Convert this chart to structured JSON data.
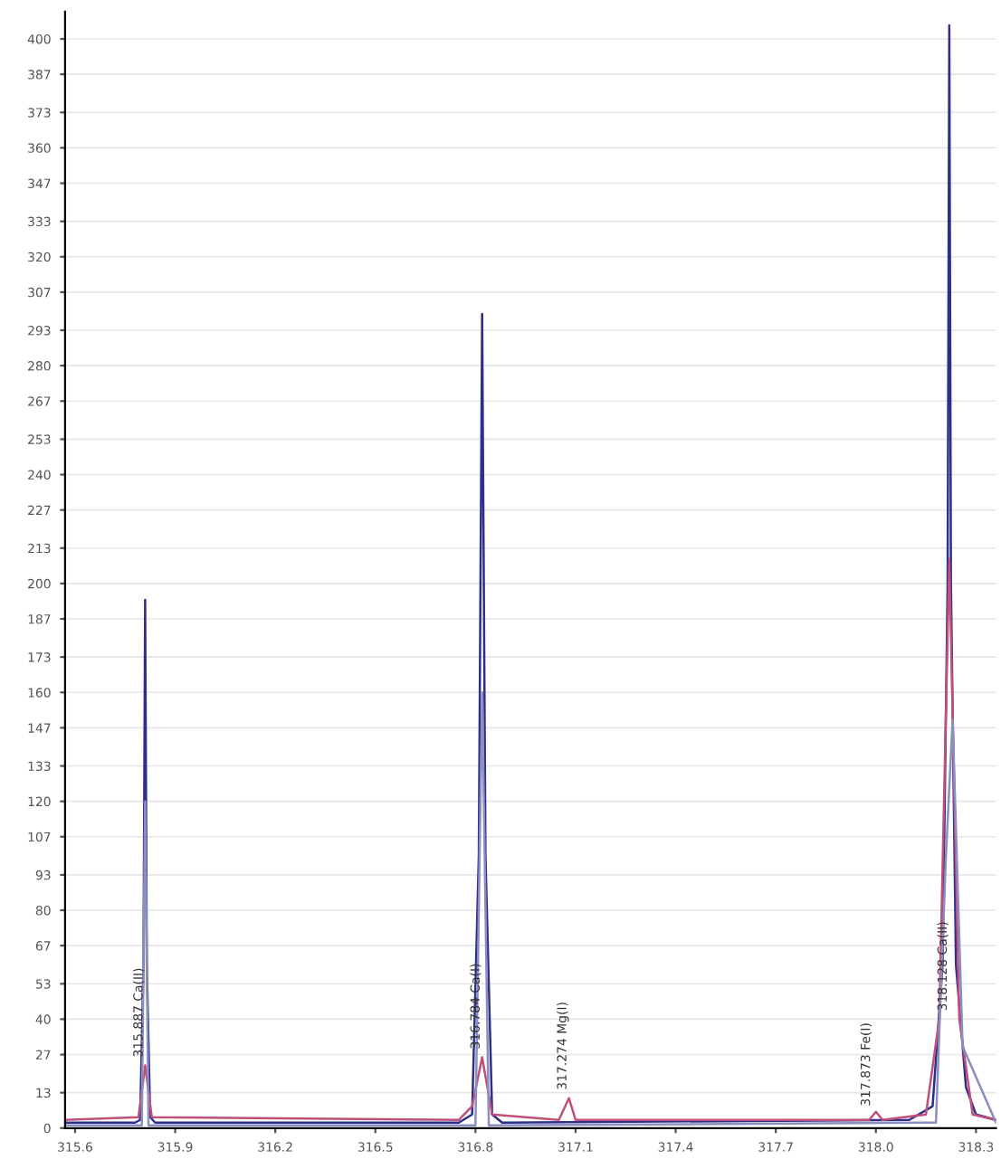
{
  "chart_data": {
    "type": "line",
    "xlim": [
      315.57,
      318.36
    ],
    "ylim": [
      0,
      410
    ],
    "xticks": [
      {
        "value": 315.6,
        "label": "315.6"
      },
      {
        "value": 315.9,
        "label": "315.9"
      },
      {
        "value": 316.2,
        "label": "316.2"
      },
      {
        "value": 316.5,
        "label": "316.5"
      },
      {
        "value": 316.8,
        "label": "316.8"
      },
      {
        "value": 317.1,
        "label": "317.1"
      },
      {
        "value": 317.4,
        "label": "317.4"
      },
      {
        "value": 317.7,
        "label": "317.7"
      },
      {
        "value": 318.0,
        "label": "318.0"
      },
      {
        "value": 318.3,
        "label": "318.3"
      }
    ],
    "yticks": [
      0,
      13,
      27,
      40,
      53,
      67,
      80,
      93,
      107,
      120,
      133,
      147,
      160,
      173,
      187,
      200,
      213,
      227,
      240,
      253,
      267,
      280,
      293,
      307,
      320,
      333,
      347,
      360,
      373,
      387,
      400
    ],
    "grid": "y",
    "legend": false,
    "marker": "none",
    "line_style": "solid",
    "series": [
      {
        "color": "#2e2f8a",
        "x": [
          315.57,
          315.78,
          315.795,
          315.805,
          315.81,
          315.815,
          315.825,
          315.84,
          316.75,
          316.79,
          316.81,
          316.82,
          316.83,
          316.85,
          316.88,
          318.1,
          318.17,
          318.2,
          318.215,
          318.22,
          318.225,
          318.24,
          318.27,
          318.3,
          318.36
        ],
        "values": [
          2,
          2,
          3,
          60,
          194,
          60,
          4,
          2,
          2,
          5,
          100,
          299,
          100,
          5,
          2,
          3,
          8,
          60,
          200,
          405,
          200,
          60,
          15,
          5,
          3
        ]
      },
      {
        "color": "#c0507a",
        "x": [
          315.57,
          315.79,
          315.81,
          315.83,
          316.75,
          316.79,
          316.82,
          316.85,
          317.05,
          317.08,
          317.1,
          317.9,
          317.98,
          318.0,
          318.02,
          318.15,
          318.19,
          318.22,
          318.25,
          318.29,
          318.36
        ],
        "values": [
          3,
          4,
          23,
          4,
          3,
          8,
          26,
          5,
          3,
          11,
          3,
          3,
          3,
          6,
          3,
          5,
          40,
          209,
          40,
          5,
          3
        ]
      },
      {
        "color": "#8a8fc0",
        "x": [
          315.57,
          315.8,
          315.81,
          315.82,
          316.8,
          316.82,
          316.84,
          318.18,
          318.21,
          318.23,
          318.26,
          318.36
        ],
        "values": [
          1,
          1,
          120,
          1,
          1,
          160,
          1,
          2,
          100,
          150,
          30,
          2
        ]
      }
    ],
    "annotations": [
      {
        "text": "315.887 Ca(II)",
        "x": 315.81,
        "y": 23
      },
      {
        "text": "316.784 Ca(I)",
        "x": 316.82,
        "y": 26
      },
      {
        "text": "317.274 Mg(I)",
        "x": 317.08,
        "y": 11
      },
      {
        "text": "317.873 Fe(I)",
        "x": 317.99,
        "y": 5
      },
      {
        "text": "318.128 Ca(II)",
        "x": 318.22,
        "y": 40
      }
    ]
  }
}
